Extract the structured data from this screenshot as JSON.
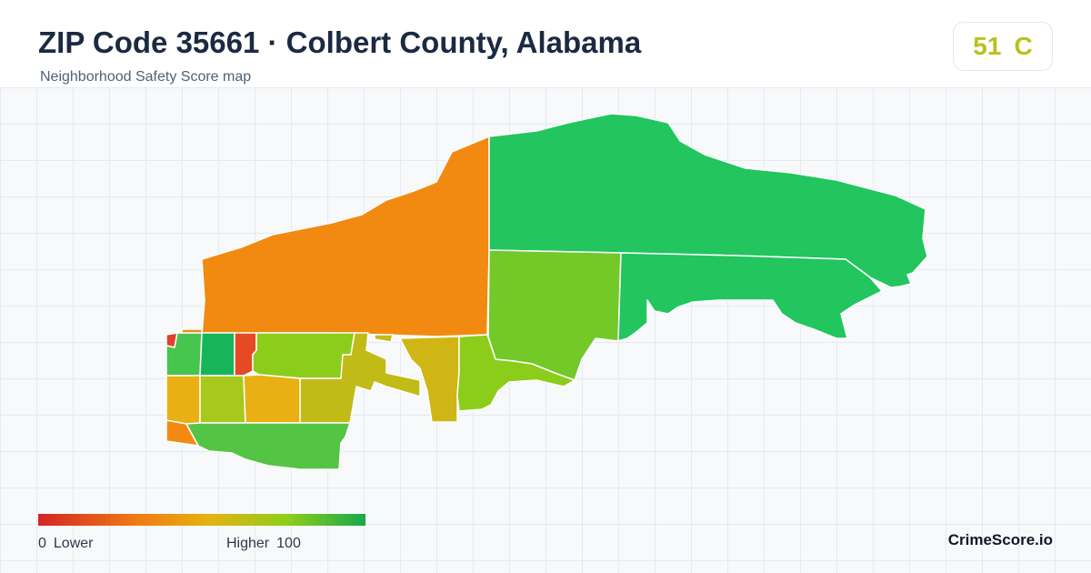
{
  "header": {
    "title": "ZIP Code 35661 · Colbert County, Alabama",
    "subtitle": "Neighborhood Safety Score map"
  },
  "score": {
    "value": "51",
    "grade": "C",
    "color": "#b9c21a"
  },
  "map": {
    "regions": [
      {
        "name": "north-west-block",
        "color": "#f28a12"
      },
      {
        "name": "north-east-block",
        "color": "#22c55e"
      },
      {
        "name": "central-block",
        "color": "#72c928"
      },
      {
        "name": "east-lowland-block",
        "color": "#22c55e"
      },
      {
        "name": "river-strip-block",
        "color": "#d0b614"
      },
      {
        "name": "south-central-block",
        "color": "#8ccd1b"
      },
      {
        "name": "red-corner-block",
        "color": "#e0402a"
      },
      {
        "name": "west-green-block",
        "color": "#47c54d"
      },
      {
        "name": "dark-green-block",
        "color": "#17b559"
      },
      {
        "name": "red-narrow-block",
        "color": "#e64a24"
      },
      {
        "name": "lime-block",
        "color": "#8ccd1b"
      },
      {
        "name": "gold-west-block",
        "color": "#e8b012"
      },
      {
        "name": "olive-block",
        "color": "#a9c81d"
      },
      {
        "name": "gold-middle-block",
        "color": "#e8b012"
      },
      {
        "name": "mustard-block",
        "color": "#c2ba16"
      },
      {
        "name": "orange-south-block",
        "color": "#f28a12"
      },
      {
        "name": "south-green-block",
        "color": "#54c445"
      }
    ]
  },
  "legend": {
    "low_value": "0",
    "low_label": "Lower",
    "high_label": "Higher",
    "high_value": "100"
  },
  "brand": "CrimeScore.io"
}
